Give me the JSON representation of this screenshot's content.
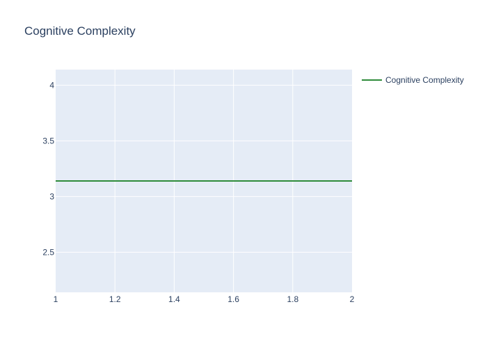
{
  "chart_data": {
    "type": "line",
    "title": "Cognitive Complexity",
    "xlabel": "",
    "ylabel": "",
    "xlim": [
      1,
      2
    ],
    "ylim": [
      2.14,
      4.14
    ],
    "x_ticks": [
      "1",
      "1.2",
      "1.4",
      "1.6",
      "1.8",
      "2"
    ],
    "y_ticks": [
      "2.5",
      "3",
      "3.5",
      "4"
    ],
    "grid": true,
    "legend_position": "top-right",
    "series": [
      {
        "name": "Cognitive Complexity",
        "color": "#2e8b3a",
        "x": [
          1,
          2
        ],
        "y": [
          3.14,
          3.14
        ]
      }
    ]
  },
  "colors": {
    "plot_bg": "#e5ecf6",
    "grid": "#ffffff",
    "text": "#2a3f5f"
  }
}
